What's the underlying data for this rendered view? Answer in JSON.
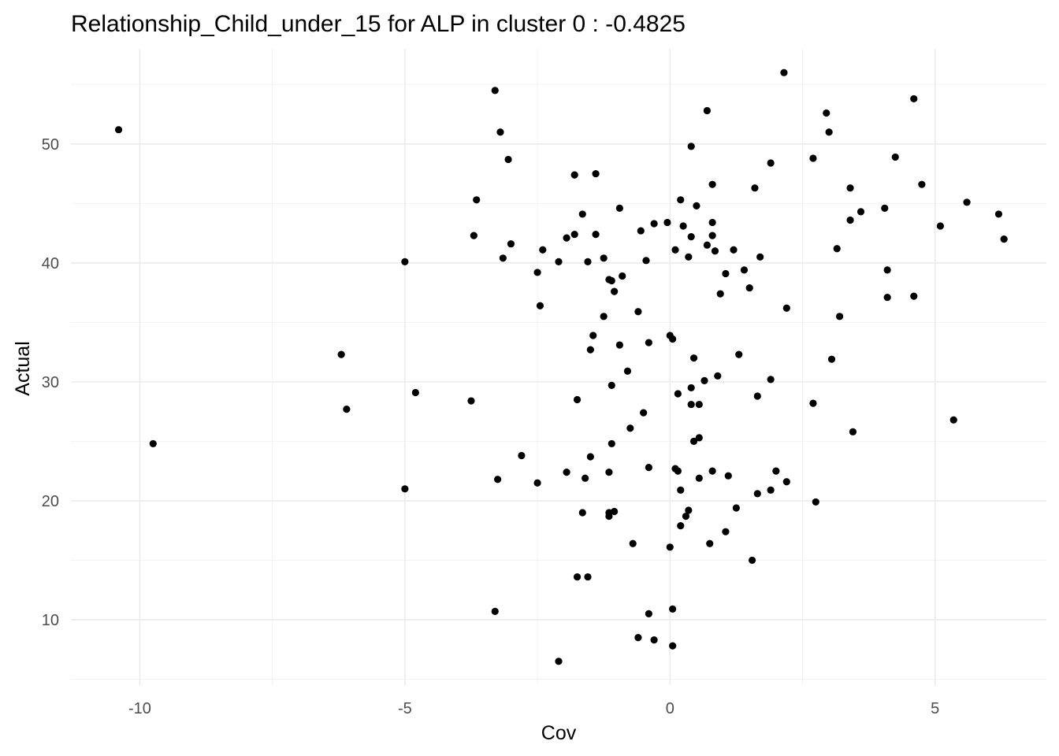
{
  "chart_data": {
    "type": "scatter",
    "title": "Relationship_Child_under_15 for ALP in cluster 0 : -0.4825",
    "xlabel": "Cov",
    "ylabel": "Actual",
    "xlim": [
      -11.3,
      7.1
    ],
    "ylim": [
      4.5,
      58.0
    ],
    "xticks": [
      -10,
      -5,
      0,
      5
    ],
    "yticks": [
      10,
      20,
      30,
      40,
      50
    ],
    "xtick_labels": [
      "-10",
      "-5",
      "0",
      "5"
    ],
    "ytick_labels": [
      "10",
      "20",
      "30",
      "40",
      "50"
    ],
    "grid": true,
    "marker_color": "#000000",
    "points": [
      [
        -10.4,
        51.2
      ],
      [
        -9.75,
        24.8
      ],
      [
        -6.2,
        32.3
      ],
      [
        -6.1,
        27.7
      ],
      [
        -5.0,
        40.1
      ],
      [
        -5.0,
        21.0
      ],
      [
        -4.8,
        29.1
      ],
      [
        -3.7,
        42.3
      ],
      [
        -3.65,
        45.3
      ],
      [
        -3.75,
        28.4
      ],
      [
        -3.3,
        54.5
      ],
      [
        -3.2,
        51.0
      ],
      [
        -3.05,
        48.7
      ],
      [
        -3.0,
        41.6
      ],
      [
        -3.15,
        40.4
      ],
      [
        -3.25,
        21.8
      ],
      [
        -3.3,
        10.7
      ],
      [
        -2.8,
        23.8
      ],
      [
        -2.5,
        39.2
      ],
      [
        -2.45,
        36.4
      ],
      [
        -2.5,
        21.5
      ],
      [
        -2.4,
        41.1
      ],
      [
        -2.1,
        40.1
      ],
      [
        -2.1,
        6.5
      ],
      [
        -1.95,
        42.1
      ],
      [
        -1.95,
        22.4
      ],
      [
        -1.8,
        47.4
      ],
      [
        -1.8,
        42.4
      ],
      [
        -1.75,
        28.5
      ],
      [
        -1.75,
        13.6
      ],
      [
        -1.65,
        44.1
      ],
      [
        -1.65,
        19.0
      ],
      [
        -1.6,
        21.9
      ],
      [
        -1.55,
        40.1
      ],
      [
        -1.55,
        13.6
      ],
      [
        -1.5,
        32.7
      ],
      [
        -1.5,
        23.7
      ],
      [
        -1.45,
        33.9
      ],
      [
        -1.4,
        47.5
      ],
      [
        -1.4,
        42.4
      ],
      [
        -1.25,
        40.4
      ],
      [
        -1.25,
        35.5
      ],
      [
        -1.15,
        38.6
      ],
      [
        -1.15,
        22.4
      ],
      [
        -1.15,
        19.0
      ],
      [
        -1.15,
        18.7
      ],
      [
        -1.1,
        38.5
      ],
      [
        -1.1,
        29.7
      ],
      [
        -1.1,
        24.8
      ],
      [
        -1.05,
        37.6
      ],
      [
        -1.05,
        19.1
      ],
      [
        -0.95,
        44.6
      ],
      [
        -0.95,
        33.1
      ],
      [
        -0.9,
        38.9
      ],
      [
        -0.8,
        30.9
      ],
      [
        -0.75,
        26.1
      ],
      [
        -0.7,
        16.4
      ],
      [
        -0.6,
        35.9
      ],
      [
        -0.6,
        8.5
      ],
      [
        -0.55,
        42.7
      ],
      [
        -0.5,
        27.4
      ],
      [
        -0.45,
        40.2
      ],
      [
        -0.4,
        33.3
      ],
      [
        -0.4,
        22.8
      ],
      [
        -0.4,
        10.5
      ],
      [
        -0.3,
        43.3
      ],
      [
        -0.3,
        8.3
      ],
      [
        -0.05,
        43.4
      ],
      [
        0.0,
        33.9
      ],
      [
        0.0,
        16.1
      ],
      [
        0.05,
        33.6
      ],
      [
        0.05,
        10.9
      ],
      [
        0.05,
        7.8
      ],
      [
        0.1,
        41.1
      ],
      [
        0.1,
        22.7
      ],
      [
        0.15,
        29.0
      ],
      [
        0.15,
        22.5
      ],
      [
        0.2,
        45.3
      ],
      [
        0.2,
        20.9
      ],
      [
        0.2,
        17.9
      ],
      [
        0.25,
        43.1
      ],
      [
        0.3,
        18.7
      ],
      [
        0.35,
        40.5
      ],
      [
        0.35,
        19.2
      ],
      [
        0.4,
        49.8
      ],
      [
        0.4,
        42.2
      ],
      [
        0.4,
        29.5
      ],
      [
        0.4,
        28.1
      ],
      [
        0.45,
        32.0
      ],
      [
        0.45,
        25.0
      ],
      [
        0.5,
        44.8
      ],
      [
        0.55,
        28.1
      ],
      [
        0.55,
        25.3
      ],
      [
        0.55,
        21.9
      ],
      [
        0.65,
        30.1
      ],
      [
        0.7,
        52.8
      ],
      [
        0.7,
        41.5
      ],
      [
        0.75,
        16.4
      ],
      [
        0.8,
        46.6
      ],
      [
        0.8,
        43.4
      ],
      [
        0.8,
        42.3
      ],
      [
        0.8,
        22.5
      ],
      [
        0.85,
        41.0
      ],
      [
        0.9,
        30.5
      ],
      [
        0.95,
        37.4
      ],
      [
        1.05,
        39.1
      ],
      [
        1.05,
        17.4
      ],
      [
        1.1,
        22.1
      ],
      [
        1.2,
        41.1
      ],
      [
        1.25,
        19.4
      ],
      [
        1.3,
        32.3
      ],
      [
        1.4,
        39.4
      ],
      [
        1.5,
        37.9
      ],
      [
        1.55,
        15.0
      ],
      [
        1.6,
        46.3
      ],
      [
        1.65,
        28.8
      ],
      [
        1.65,
        20.6
      ],
      [
        1.7,
        40.5
      ],
      [
        1.9,
        48.4
      ],
      [
        1.9,
        30.2
      ],
      [
        1.9,
        20.9
      ],
      [
        2.0,
        22.5
      ],
      [
        2.15,
        56.0
      ],
      [
        2.2,
        36.2
      ],
      [
        2.2,
        21.6
      ],
      [
        2.7,
        48.8
      ],
      [
        2.7,
        28.2
      ],
      [
        2.75,
        19.9
      ],
      [
        2.95,
        52.6
      ],
      [
        3.0,
        51.0
      ],
      [
        3.05,
        31.9
      ],
      [
        3.15,
        41.2
      ],
      [
        3.2,
        35.5
      ],
      [
        3.4,
        46.3
      ],
      [
        3.4,
        43.6
      ],
      [
        3.45,
        25.8
      ],
      [
        3.6,
        44.3
      ],
      [
        4.05,
        44.6
      ],
      [
        4.1,
        39.4
      ],
      [
        4.1,
        37.1
      ],
      [
        4.25,
        48.9
      ],
      [
        4.6,
        53.8
      ],
      [
        4.6,
        37.2
      ],
      [
        4.75,
        46.6
      ],
      [
        5.1,
        43.1
      ],
      [
        5.35,
        26.8
      ],
      [
        5.6,
        45.1
      ],
      [
        6.2,
        44.1
      ],
      [
        6.3,
        42.0
      ]
    ]
  }
}
